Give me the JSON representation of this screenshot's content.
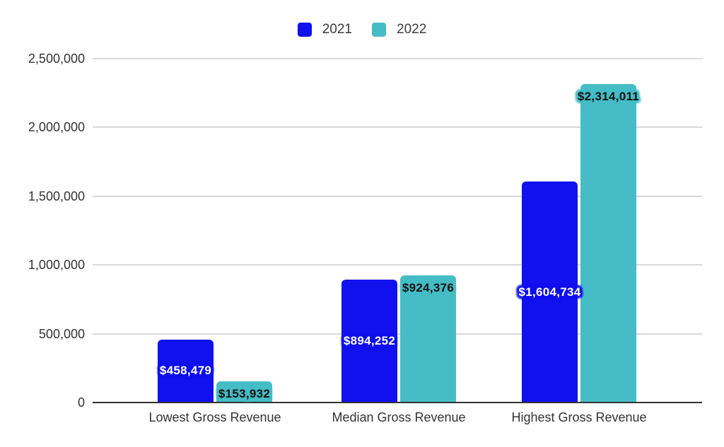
{
  "chart_data": {
    "type": "bar",
    "title": "",
    "categories": [
      "Lowest Gross Revenue",
      "Median Gross Revenue",
      "Highest Gross Revenue"
    ],
    "series": [
      {
        "name": "2021",
        "color": "#1111ee",
        "label_color": "#ffffff",
        "label_position": "middle",
        "values": [
          458479,
          894252,
          1604734
        ],
        "labels": [
          "$458,479",
          "$894,252",
          "$1,604,734"
        ]
      },
      {
        "name": "2022",
        "color": "#46bdc6",
        "label_color": "#111111",
        "label_position": "inside-top",
        "values": [
          153932,
          924376,
          2314011
        ],
        "labels": [
          "$153,932",
          "$924,376",
          "$2,314,011"
        ]
      }
    ],
    "y_axis": {
      "min": 0,
      "max": 2500000,
      "step": 500000,
      "tick_labels": [
        "0",
        "500,000",
        "1,000,000",
        "1,500,000",
        "2,000,000",
        "2,500,000"
      ]
    },
    "legend_position": "top",
    "grid": true,
    "colors": {
      "background": "#ffffff",
      "gridline": "#d9d9d9",
      "axis_line": "#333333",
      "axis_text": "#333333",
      "legend_text": "#3c3c3c"
    }
  }
}
